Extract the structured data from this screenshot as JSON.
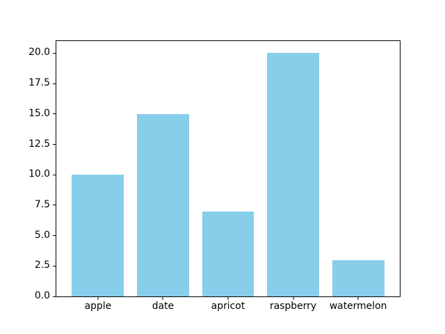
{
  "chart_data": {
    "type": "bar",
    "title": "",
    "xlabel": "",
    "ylabel": "",
    "categories": [
      "apple",
      "date",
      "apricot",
      "raspberry",
      "watermelon"
    ],
    "values": [
      10,
      15,
      7,
      20,
      3
    ],
    "ylim": [
      0,
      21
    ],
    "yticks": [
      0.0,
      2.5,
      5.0,
      7.5,
      10.0,
      12.5,
      15.0,
      17.5,
      20.0
    ],
    "ytick_labels": [
      "0.0",
      "2.5",
      "5.0",
      "7.5",
      "10.0",
      "12.5",
      "15.0",
      "17.5",
      "20.0"
    ],
    "bar_color": "#87ceeb",
    "axis_color": "#000000",
    "text_color": "#000000",
    "background_color": "#ffffff",
    "grid": false,
    "legend": "none",
    "bar_width_fraction": 0.8,
    "x_margin": 0.24
  }
}
